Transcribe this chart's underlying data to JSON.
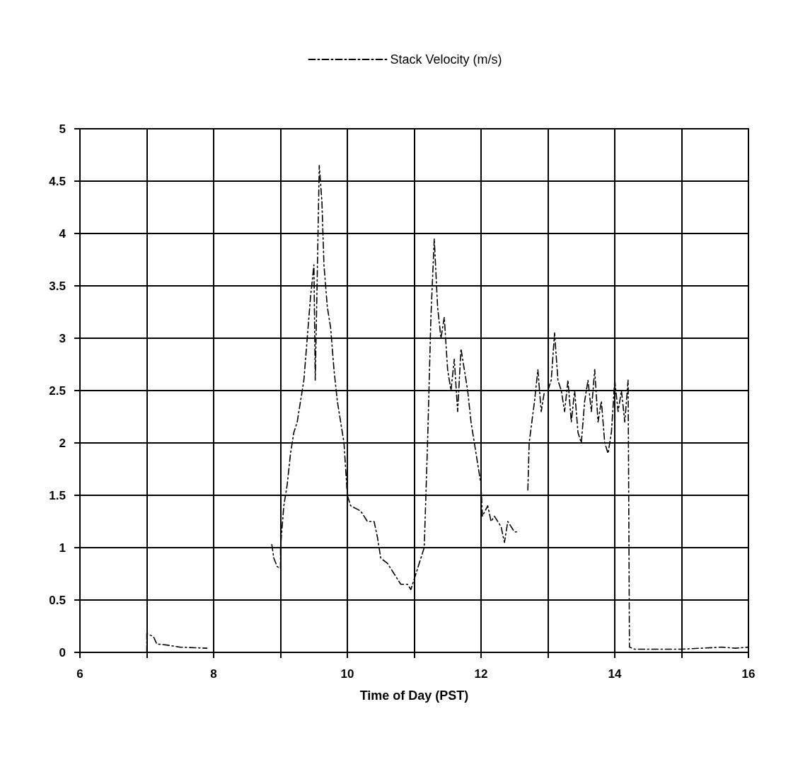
{
  "chart_data": {
    "type": "line",
    "xlabel": "Time of Day (PST)",
    "legend": "top",
    "grid": true,
    "marker": "none",
    "line_style": "dashed",
    "xlim": [
      6,
      16
    ],
    "xticks": [
      6,
      {
        "value": 7,
        "label": null
      },
      8,
      {
        "value": 9,
        "label": null
      },
      10,
      {
        "value": 11,
        "label": null
      },
      12,
      {
        "value": 13,
        "label": null
      },
      14,
      {
        "value": 15,
        "label": null
      },
      16
    ],
    "ylim": [
      0,
      5
    ],
    "yticks": [
      0,
      0.5,
      1,
      1.5,
      2,
      2.5,
      3,
      3.5,
      4,
      4.5,
      5
    ],
    "series": [
      {
        "name": "Stack Velocity (m/s)",
        "color": "#000000",
        "x": [
          7.0,
          7.0,
          7.1,
          7.15,
          7.3,
          7.5,
          7.9,
          8.4,
          8.87,
          8.9,
          8.95,
          9.0,
          9.0,
          9.05,
          9.1,
          9.15,
          9.2,
          9.25,
          9.3,
          9.35,
          9.4,
          9.45,
          9.5,
          9.52,
          9.55,
          9.58,
          9.62,
          9.65,
          9.7,
          9.75,
          9.8,
          9.85,
          9.9,
          9.95,
          10.0,
          10.05,
          10.2,
          10.3,
          10.4,
          10.45,
          10.5,
          10.6,
          10.7,
          10.8,
          10.9,
          10.95,
          11.0,
          11.1,
          11.15,
          11.2,
          11.25,
          11.3,
          11.35,
          11.4,
          11.45,
          11.5,
          11.55,
          11.6,
          11.65,
          11.7,
          11.75,
          11.8,
          11.85,
          11.9,
          11.95,
          12.0,
          12.02,
          12.1,
          12.15,
          12.2,
          12.3,
          12.35,
          12.4,
          12.5,
          12.55,
          12.62,
          12.7,
          12.72,
          12.8,
          12.85,
          12.9,
          12.95,
          13.0,
          13.05,
          13.1,
          13.15,
          13.2,
          13.25,
          13.3,
          13.35,
          13.4,
          13.45,
          13.5,
          13.55,
          13.6,
          13.65,
          13.7,
          13.75,
          13.8,
          13.85,
          13.9,
          13.95,
          14.0,
          14.05,
          14.1,
          14.15,
          14.2,
          14.22,
          14.3,
          14.6,
          15.0,
          15.3,
          15.6,
          15.8,
          16.0
        ],
        "values": [
          0.0,
          0.18,
          0.15,
          0.08,
          0.07,
          0.05,
          0.04,
          null,
          1.03,
          0.9,
          0.82,
          0.8,
          1.0,
          1.4,
          1.6,
          1.9,
          2.1,
          2.2,
          2.4,
          2.6,
          3.0,
          3.4,
          3.7,
          2.6,
          3.6,
          4.65,
          4.3,
          3.7,
          3.3,
          3.1,
          2.7,
          2.4,
          2.2,
          2.0,
          1.5,
          1.4,
          1.35,
          1.25,
          1.25,
          1.1,
          0.9,
          0.85,
          0.75,
          0.65,
          0.65,
          0.6,
          0.7,
          0.9,
          1.0,
          2.0,
          3.2,
          3.95,
          3.3,
          3.0,
          3.2,
          2.7,
          2.5,
          2.8,
          2.3,
          2.9,
          2.7,
          2.5,
          2.2,
          2.0,
          1.8,
          1.6,
          1.3,
          1.4,
          1.25,
          1.3,
          1.2,
          1.05,
          1.25,
          1.15,
          1.15,
          null,
          1.55,
          2.0,
          2.4,
          2.7,
          2.3,
          2.5,
          2.5,
          2.6,
          3.05,
          2.6,
          2.5,
          2.3,
          2.6,
          2.2,
          2.5,
          2.1,
          2.0,
          2.4,
          2.6,
          2.3,
          2.7,
          2.2,
          2.4,
          2.0,
          1.9,
          2.1,
          2.6,
          2.3,
          2.5,
          2.2,
          2.6,
          0.05,
          0.03,
          0.03,
          0.03,
          0.04,
          0.05,
          0.04,
          0.05
        ]
      }
    ]
  }
}
